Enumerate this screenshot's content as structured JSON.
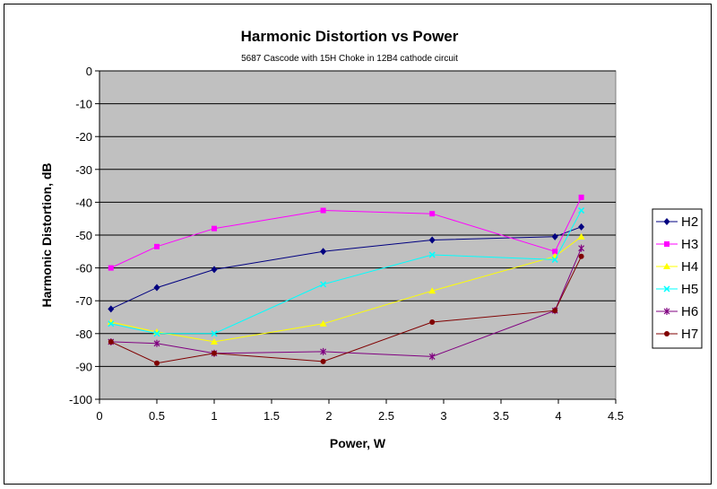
{
  "chart_data": {
    "type": "line",
    "title": "Harmonic Distortion vs Power",
    "subtitle": "5687 Cascode with 15H Choke in 12B4 cathode circuit",
    "xlabel": "Power, W",
    "ylabel": "Harmonic Distortion, dB",
    "xlim": [
      0,
      4.5
    ],
    "ylim": [
      -100,
      0
    ],
    "xticks": [
      0,
      0.5,
      1,
      1.5,
      2,
      2.5,
      3,
      3.5,
      4,
      4.5
    ],
    "yticks": [
      0,
      -10,
      -20,
      -30,
      -40,
      -50,
      -60,
      -70,
      -80,
      -90,
      -100
    ],
    "xtick_labels": [
      "0",
      "0.5",
      "1",
      "1.5",
      "2",
      "2.5",
      "3",
      "3.5",
      "4",
      "4.5"
    ],
    "ytick_labels": [
      "0",
      "-10",
      "-20",
      "-30",
      "-40",
      "-50",
      "-60",
      "-70",
      "-80",
      "-90",
      "-100"
    ],
    "grid": "horizontal",
    "plot_background": "#c0c0c0",
    "legend_position": "right",
    "series": [
      {
        "name": "H2",
        "color": "#000080",
        "marker": "diamond",
        "x": [
          0.1,
          0.5,
          1.0,
          1.95,
          2.9,
          3.97,
          4.2
        ],
        "y": [
          -72.5,
          -66,
          -60.5,
          -55,
          -51.5,
          -50.5,
          -47.5
        ]
      },
      {
        "name": "H3",
        "color": "#ff00ff",
        "marker": "square",
        "x": [
          0.1,
          0.5,
          1.0,
          1.95,
          2.9,
          3.97,
          4.2
        ],
        "y": [
          -60,
          -53.5,
          -48,
          -42.5,
          -43.5,
          -55,
          -38.5
        ]
      },
      {
        "name": "H4",
        "color": "#ffff00",
        "marker": "triangle",
        "x": [
          0.1,
          0.5,
          1.0,
          1.95,
          2.9,
          3.97,
          4.2
        ],
        "y": [
          -76.5,
          -79.5,
          -82.5,
          -77,
          -67,
          -56.5,
          -50.5
        ]
      },
      {
        "name": "H5",
        "color": "#00ffff",
        "marker": "x",
        "x": [
          0.1,
          0.5,
          1.0,
          1.95,
          2.9,
          3.97,
          4.2
        ],
        "y": [
          -77,
          -80,
          -80,
          -65,
          -56,
          -57.5,
          -42.5
        ]
      },
      {
        "name": "H6",
        "color": "#800080",
        "marker": "star",
        "x": [
          0.1,
          0.5,
          1.0,
          1.95,
          2.9,
          3.97,
          4.2
        ],
        "y": [
          -82.5,
          -83,
          -86,
          -85.5,
          -87,
          -73,
          -54
        ]
      },
      {
        "name": "H7",
        "color": "#800000",
        "marker": "circle",
        "x": [
          0.1,
          0.5,
          1.0,
          1.95,
          2.9,
          3.97,
          4.2
        ],
        "y": [
          -82.5,
          -89,
          -86,
          -88.5,
          -76.5,
          -73,
          -56.5
        ]
      }
    ]
  }
}
